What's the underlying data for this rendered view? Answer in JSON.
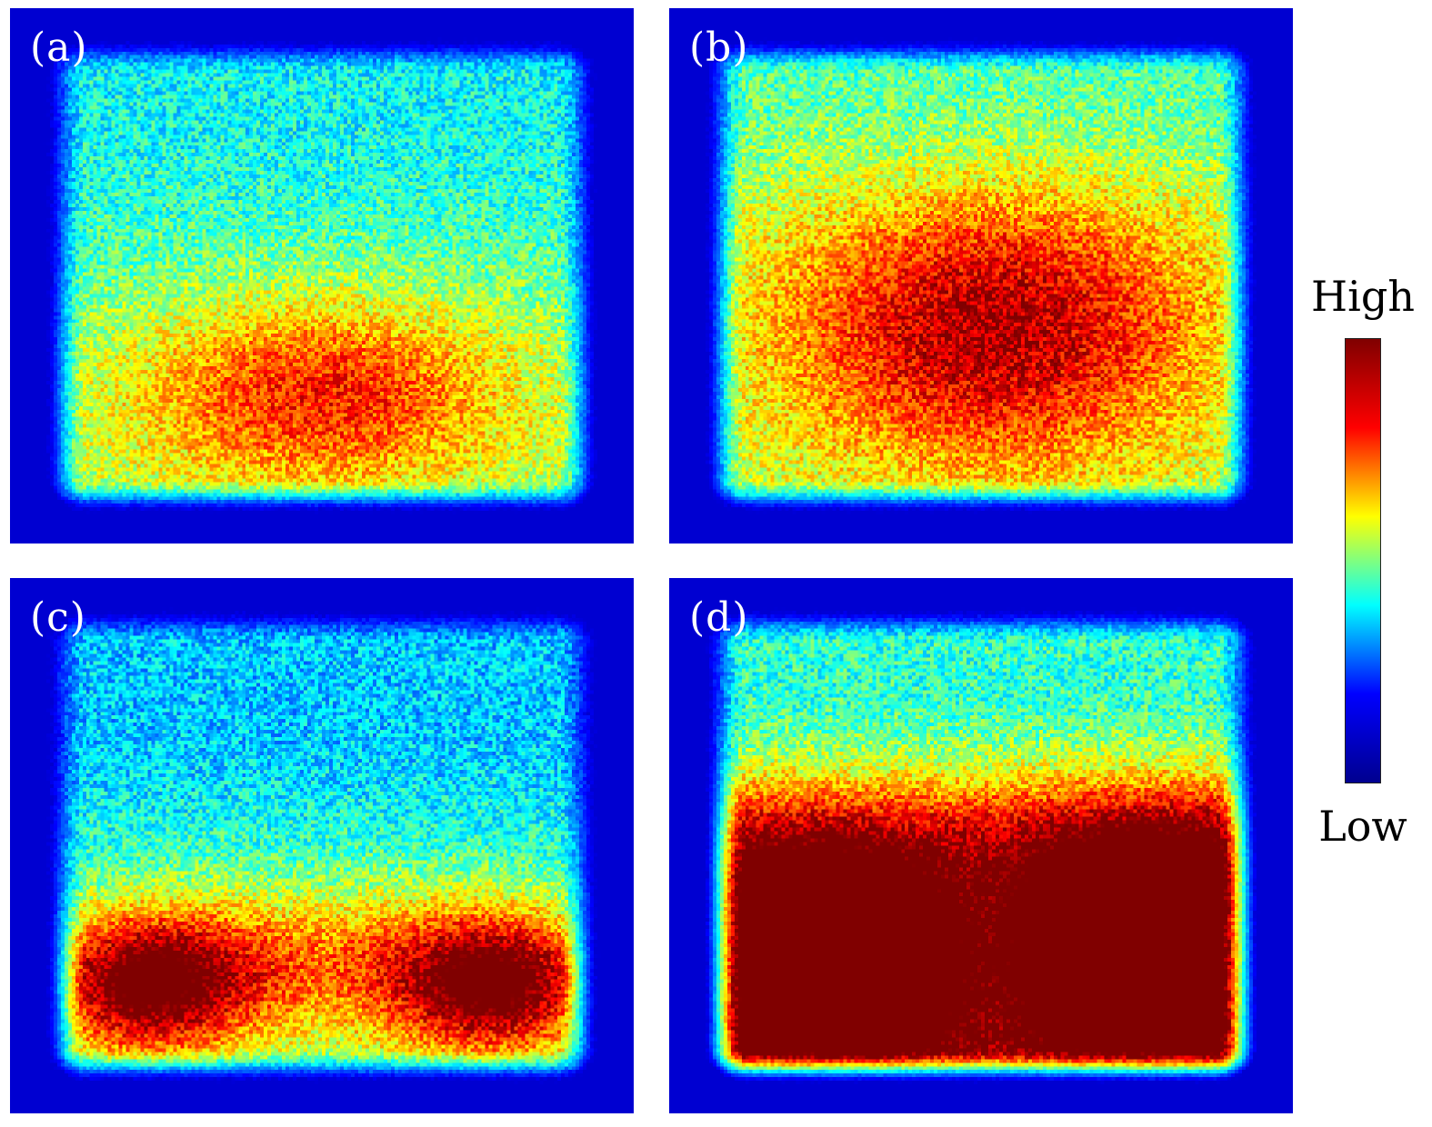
{
  "chart_data": [
    {
      "type": "heatmap",
      "panel_label": "(a)",
      "description_stops": [],
      "intensity_profile": {
        "hot_region": "lower-center",
        "peak_level": 0.78,
        "upper_level": 0.35
      }
    },
    {
      "type": "heatmap",
      "panel_label": "(b)",
      "intensity_profile": {
        "hot_region": "center",
        "peak_level": 0.9,
        "upper_level": 0.5
      }
    },
    {
      "type": "heatmap",
      "panel_label": "(c)",
      "intensity_profile": {
        "hot_region": "bottom-left and bottom-right lobes",
        "peak_level": 0.97,
        "upper_level": 0.35
      }
    },
    {
      "type": "heatmap",
      "panel_label": "(d)",
      "intensity_profile": {
        "hot_region": "bottom, saturated",
        "peak_level": 1.0,
        "upper_level": 0.45
      }
    }
  ],
  "colorbar": {
    "high_label": "High",
    "low_label": "Low",
    "colormap": "jet",
    "stops": [
      "#00008f",
      "#0000ff",
      "#00ffff",
      "#ffff00",
      "#ff0000",
      "#800000"
    ]
  }
}
